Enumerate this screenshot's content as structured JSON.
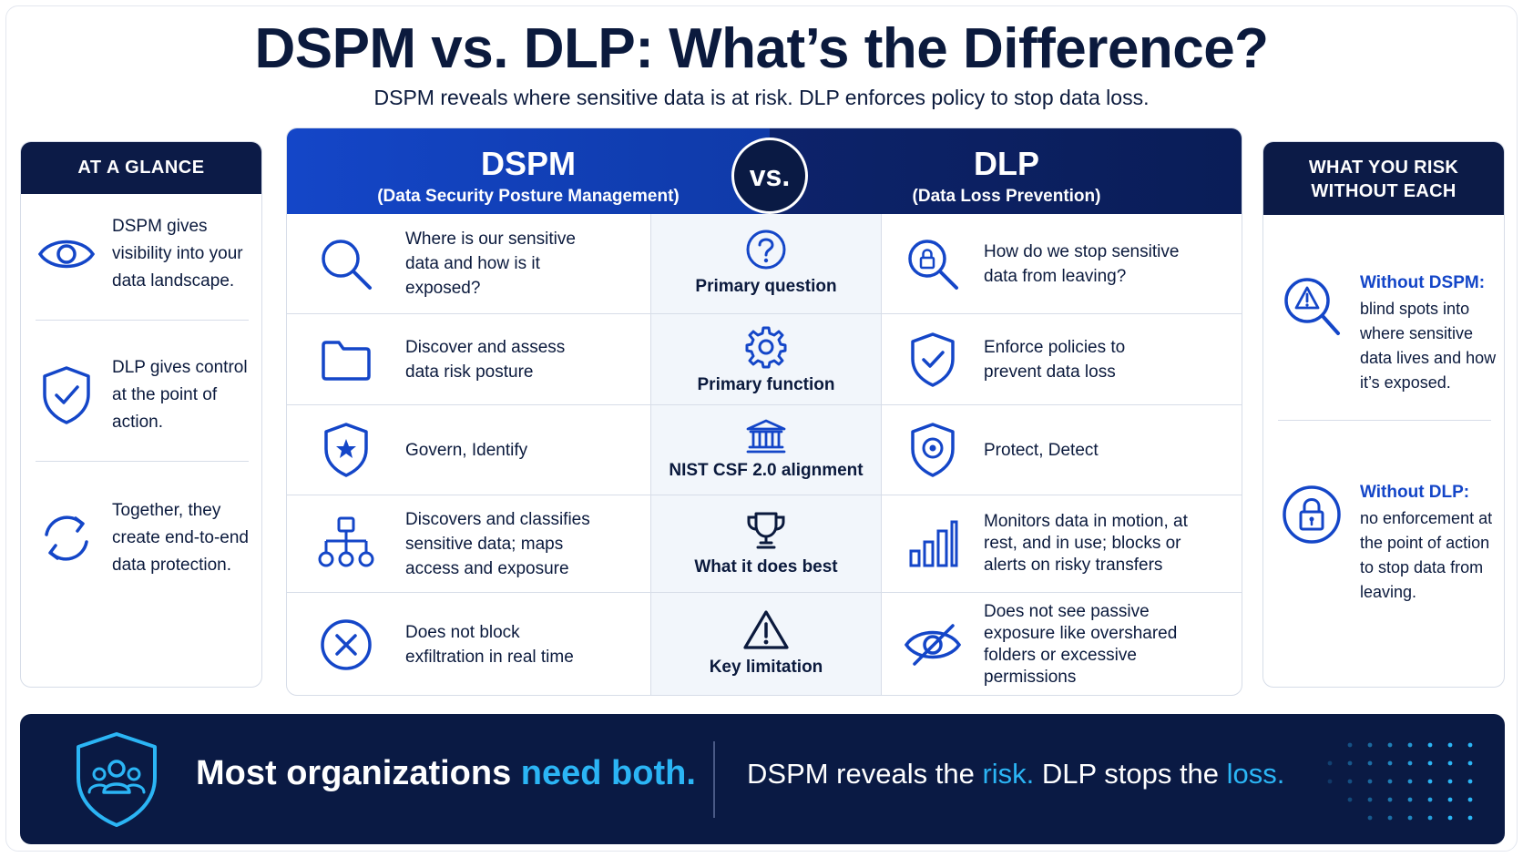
{
  "title": "DSPM vs. DLP: What’s the Difference?",
  "subtitle": "DSPM reveals where sensitive data is at risk. DLP enforces policy to stop data loss.",
  "at_a_glance": {
    "heading": "AT A GLANCE",
    "items": [
      {
        "icon": "eye-icon",
        "text": "DSPM gives visibility into your data landscape."
      },
      {
        "icon": "shield-check-icon",
        "text": "DLP gives control at the point of action."
      },
      {
        "icon": "cycle-arrows-icon",
        "text": "Together, they create end-to-end data protection."
      }
    ]
  },
  "risk_panel": {
    "heading_line1": "WHAT YOU RISK",
    "heading_line2": "WITHOUT EACH",
    "items": [
      {
        "icon": "warning-magnifier-icon",
        "title": "Without DSPM:",
        "text": "blind spots into where sensitive data lives and how it’s exposed."
      },
      {
        "icon": "padlock-icon",
        "title": "Without DLP:",
        "text": "no enforcement at the point of action to stop data from leaving."
      }
    ]
  },
  "comparison": {
    "left_header": {
      "name": "DSPM",
      "sub": "(Data Security Posture Management)"
    },
    "right_header": {
      "name": "DLP",
      "sub": "(Data Loss Prevention)"
    },
    "vs_label": "vs.",
    "rows": [
      {
        "dimension": "Primary question",
        "dim_icon": "question-circle-icon",
        "dspm_icon": "magnifier-icon",
        "dspm": "Where is our sensitive data and how is it exposed?",
        "dlp_icon": "lock-magnifier-icon",
        "dlp": "How do we stop sensitive data from leaving?"
      },
      {
        "dimension": "Primary function",
        "dim_icon": "gear-icon",
        "dspm_icon": "folder-icon",
        "dspm": "Discover and assess data risk posture",
        "dlp_icon": "shield-check-icon",
        "dlp": "Enforce policies to prevent data loss"
      },
      {
        "dimension": "NIST CSF 2.0 alignment",
        "dim_icon": "institution-icon",
        "dspm_icon": "shield-star-icon",
        "dspm": "Govern, Identify",
        "dlp_icon": "shield-target-icon",
        "dlp": "Protect, Detect"
      },
      {
        "dimension": "What it does best",
        "dim_icon": "trophy-icon",
        "dspm_icon": "hierarchy-icon",
        "dspm": "Discovers and classifies sensitive data; maps access and exposure",
        "dlp_icon": "bar-chart-icon",
        "dlp": "Monitors data in motion, at rest, and in use; blocks or alerts on risky transfers"
      },
      {
        "dimension": "Key limitation",
        "dim_icon": "warning-triangle-icon",
        "dspm_icon": "x-circle-icon",
        "dspm": "Does not block exfiltration in real time",
        "dlp_icon": "eye-slash-icon",
        "dlp": "Does not see passive exposure like overshared folders or excessive permissions"
      }
    ]
  },
  "footer": {
    "left_plain": "Most organizations ",
    "left_highlight": "need both.",
    "right_part1": "DSPM reveals the ",
    "right_hl1": "risk.",
    "right_part2": " DLP stops the ",
    "right_hl2": "loss."
  },
  "colors": {
    "navy": "#0a1a44",
    "blue": "#1446c8",
    "accent": "#2bb5f5"
  }
}
